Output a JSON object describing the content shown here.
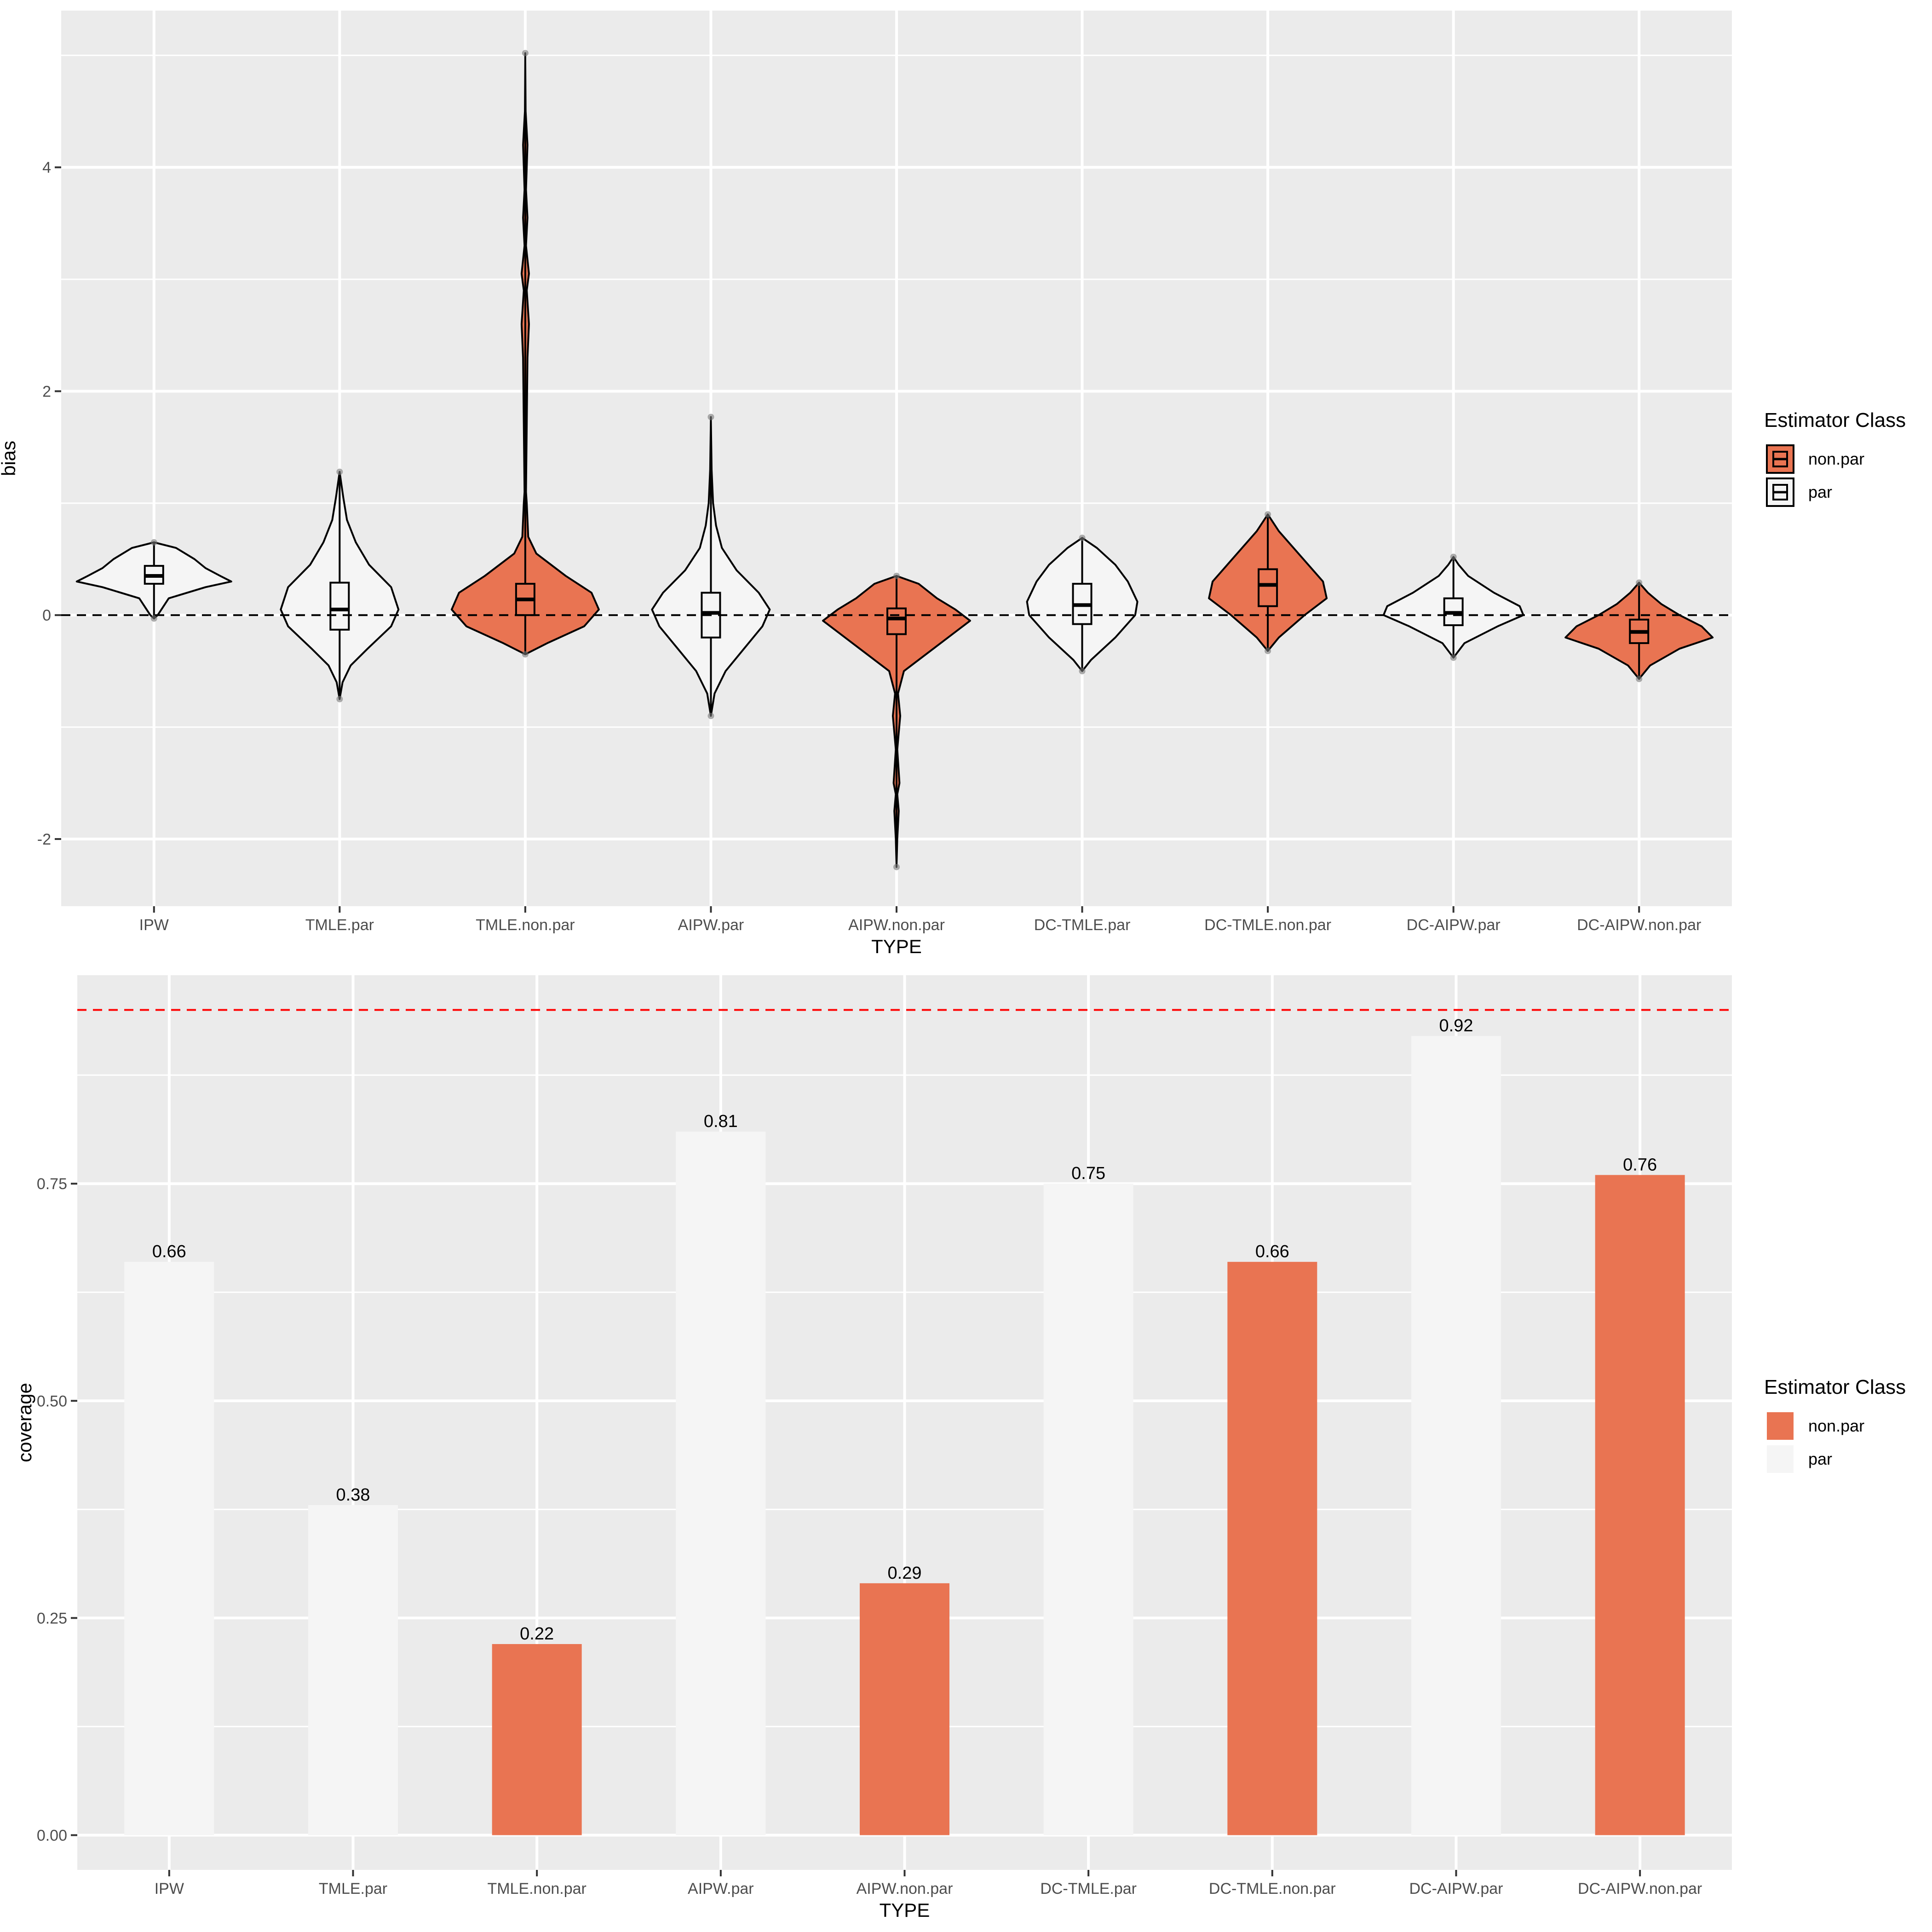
{
  "colors": {
    "non_par": "#E97452",
    "par": "#F5F5F5",
    "panel_bg": "#EBEBEB",
    "grid": "#FFFFFF",
    "reference_line": "#FF0000",
    "zero_line": "#000000"
  },
  "chart_data": [
    {
      "type": "violin",
      "title": "",
      "xlabel": "TYPE",
      "ylabel": "bias",
      "ylim": [
        -2.6,
        5.4
      ],
      "yticks": [
        -2,
        0,
        2,
        4
      ],
      "ytick_labels": [
        "-2",
        "0",
        "2",
        "4"
      ],
      "grid": true,
      "reference_line": {
        "y": 0,
        "style": "dashed"
      },
      "legend": {
        "title": "Estimator Class",
        "position": "right",
        "entries": [
          "non.par",
          "par"
        ]
      },
      "categories": [
        "IPW",
        "TMLE.par",
        "TMLE.non.par",
        "AIPW.par",
        "AIPW.non.par",
        "DC-TMLE.par",
        "DC-TMLE.non.par",
        "DC-AIPW.par",
        "DC-AIPW.non.par"
      ],
      "series": [
        {
          "category": "IPW",
          "class": "par",
          "min": -0.03,
          "max": 0.65,
          "q1": 0.28,
          "median": 0.35,
          "q3": 0.44,
          "whisker_low": 0.02,
          "whisker_high": 0.62,
          "profile": [
            [
              -0.03,
              0.0
            ],
            [
              0.0,
              0.05
            ],
            [
              0.05,
              0.1
            ],
            [
              0.15,
              0.2
            ],
            [
              0.25,
              0.7
            ],
            [
              0.3,
              1.05
            ],
            [
              0.35,
              0.9
            ],
            [
              0.42,
              0.7
            ],
            [
              0.5,
              0.55
            ],
            [
              0.6,
              0.3
            ],
            [
              0.65,
              0.0
            ]
          ]
        },
        {
          "category": "TMLE.par",
          "class": "par",
          "min": -0.75,
          "max": 1.28,
          "q1": -0.13,
          "median": 0.05,
          "q3": 0.29,
          "whisker_low": -0.7,
          "whisker_high": 0.85,
          "profile": [
            [
              -0.75,
              0.0
            ],
            [
              -0.6,
              0.04
            ],
            [
              -0.45,
              0.15
            ],
            [
              -0.3,
              0.38
            ],
            [
              -0.1,
              0.7
            ],
            [
              0.05,
              0.8
            ],
            [
              0.25,
              0.7
            ],
            [
              0.45,
              0.4
            ],
            [
              0.65,
              0.22
            ],
            [
              0.85,
              0.1
            ],
            [
              1.05,
              0.05
            ],
            [
              1.28,
              0.0
            ]
          ]
        },
        {
          "category": "TMLE.non.par",
          "class": "non.par",
          "min": -0.35,
          "max": 5.02,
          "q1": -0.0,
          "median": 0.14,
          "q3": 0.28,
          "whisker_low": -0.3,
          "whisker_high": 0.65,
          "profile": [
            [
              -0.35,
              0.0
            ],
            [
              -0.25,
              0.3
            ],
            [
              -0.1,
              0.8
            ],
            [
              0.05,
              1.0
            ],
            [
              0.2,
              0.9
            ],
            [
              0.35,
              0.55
            ],
            [
              0.55,
              0.15
            ],
            [
              0.7,
              0.04
            ],
            [
              1.0,
              0.02
            ],
            [
              1.1,
              0.01
            ],
            [
              2.3,
              0.03
            ],
            [
              2.6,
              0.05
            ],
            [
              2.9,
              0.02
            ],
            [
              3.05,
              0.05
            ],
            [
              3.3,
              0.01
            ],
            [
              3.55,
              0.03
            ],
            [
              3.8,
              0.01
            ],
            [
              4.0,
              0.02
            ],
            [
              4.2,
              0.03
            ],
            [
              4.5,
              0.005
            ],
            [
              5.02,
              0.0
            ]
          ]
        },
        {
          "category": "AIPW.par",
          "class": "par",
          "min": -0.9,
          "max": 1.77,
          "q1": -0.2,
          "median": 0.02,
          "q3": 0.2,
          "whisker_low": -0.55,
          "whisker_high": 0.75,
          "profile": [
            [
              -0.9,
              0.0
            ],
            [
              -0.7,
              0.05
            ],
            [
              -0.5,
              0.2
            ],
            [
              -0.3,
              0.45
            ],
            [
              -0.1,
              0.7
            ],
            [
              0.05,
              0.8
            ],
            [
              0.2,
              0.65
            ],
            [
              0.4,
              0.35
            ],
            [
              0.6,
              0.15
            ],
            [
              0.8,
              0.07
            ],
            [
              1.0,
              0.03
            ],
            [
              1.3,
              0.01
            ],
            [
              1.77,
              0.0
            ]
          ]
        },
        {
          "category": "AIPW.non.par",
          "class": "non.par",
          "min": -2.25,
          "max": 0.35,
          "q1": -0.17,
          "median": -0.03,
          "q3": 0.06,
          "whisker_low": -0.55,
          "whisker_high": 0.32,
          "profile": [
            [
              -2.25,
              0.0
            ],
            [
              -2.0,
              0.01
            ],
            [
              -1.75,
              0.03
            ],
            [
              -1.6,
              0.01
            ],
            [
              -1.5,
              0.04
            ],
            [
              -1.2,
              0.01
            ],
            [
              -0.9,
              0.05
            ],
            [
              -0.7,
              0.02
            ],
            [
              -0.5,
              0.1
            ],
            [
              -0.35,
              0.4
            ],
            [
              -0.15,
              0.8
            ],
            [
              -0.05,
              1.0
            ],
            [
              0.05,
              0.8
            ],
            [
              0.15,
              0.55
            ],
            [
              0.28,
              0.3
            ],
            [
              0.35,
              0.0
            ]
          ]
        },
        {
          "category": "DC-TMLE.par",
          "class": "par",
          "min": -0.5,
          "max": 0.69,
          "q1": -0.08,
          "median": 0.09,
          "q3": 0.28,
          "whisker_low": -0.45,
          "whisker_high": 0.62,
          "profile": [
            [
              -0.5,
              0.0
            ],
            [
              -0.4,
              0.12
            ],
            [
              -0.2,
              0.45
            ],
            [
              0.0,
              0.72
            ],
            [
              0.12,
              0.75
            ],
            [
              0.3,
              0.62
            ],
            [
              0.45,
              0.45
            ],
            [
              0.6,
              0.2
            ],
            [
              0.69,
              0.0
            ]
          ]
        },
        {
          "category": "DC-TMLE.non.par",
          "class": "non.par",
          "min": -0.32,
          "max": 0.9,
          "q1": 0.08,
          "median": 0.27,
          "q3": 0.41,
          "whisker_low": -0.28,
          "whisker_high": 0.85,
          "profile": [
            [
              -0.32,
              0.0
            ],
            [
              -0.2,
              0.15
            ],
            [
              0.0,
              0.5
            ],
            [
              0.15,
              0.8
            ],
            [
              0.3,
              0.75
            ],
            [
              0.45,
              0.55
            ],
            [
              0.6,
              0.35
            ],
            [
              0.75,
              0.15
            ],
            [
              0.9,
              0.0
            ]
          ]
        },
        {
          "category": "DC-AIPW.par",
          "class": "par",
          "min": -0.38,
          "max": 0.52,
          "q1": -0.09,
          "median": 0.02,
          "q3": 0.15,
          "whisker_low": -0.35,
          "whisker_high": 0.45,
          "profile": [
            [
              -0.38,
              0.0
            ],
            [
              -0.25,
              0.15
            ],
            [
              -0.1,
              0.6
            ],
            [
              0.0,
              0.95
            ],
            [
              0.08,
              0.9
            ],
            [
              0.2,
              0.55
            ],
            [
              0.35,
              0.2
            ],
            [
              0.45,
              0.07
            ],
            [
              0.52,
              0.0
            ]
          ]
        },
        {
          "category": "DC-AIPW.non.par",
          "class": "non.par",
          "min": -0.57,
          "max": 0.29,
          "q1": -0.25,
          "median": -0.15,
          "q3": -0.04,
          "whisker_low": -0.5,
          "whisker_high": 0.22,
          "profile": [
            [
              -0.57,
              0.0
            ],
            [
              -0.45,
              0.15
            ],
            [
              -0.3,
              0.55
            ],
            [
              -0.2,
              1.0
            ],
            [
              -0.1,
              0.85
            ],
            [
              0.0,
              0.55
            ],
            [
              0.1,
              0.3
            ],
            [
              0.2,
              0.12
            ],
            [
              0.29,
              0.0
            ]
          ]
        }
      ]
    },
    {
      "type": "bar",
      "title": "",
      "xlabel": "TYPE",
      "ylabel": "coverage",
      "ylim": [
        -0.04,
        0.99
      ],
      "yticks": [
        0,
        0.25,
        0.5,
        0.75
      ],
      "ytick_labels": [
        "0.00",
        "0.25",
        "0.50",
        "0.75"
      ],
      "grid": true,
      "reference_line": {
        "y": 0.95,
        "style": "dashed"
      },
      "legend": {
        "title": "Estimator Class",
        "position": "right",
        "entries": [
          "non.par",
          "par"
        ]
      },
      "categories": [
        "IPW",
        "TMLE.par",
        "TMLE.non.par",
        "AIPW.par",
        "AIPW.non.par",
        "DC-TMLE.par",
        "DC-TMLE.non.par",
        "DC-AIPW.par",
        "DC-AIPW.non.par"
      ],
      "values": [
        0.66,
        0.38,
        0.22,
        0.81,
        0.29,
        0.75,
        0.66,
        0.92,
        0.76
      ],
      "value_labels": [
        "0.66",
        "0.38",
        "0.22",
        "0.81",
        "0.29",
        "0.75",
        "0.66",
        "0.92",
        "0.76"
      ],
      "classes": [
        "par",
        "par",
        "non.par",
        "par",
        "non.par",
        "par",
        "non.par",
        "par",
        "non.par"
      ]
    }
  ]
}
